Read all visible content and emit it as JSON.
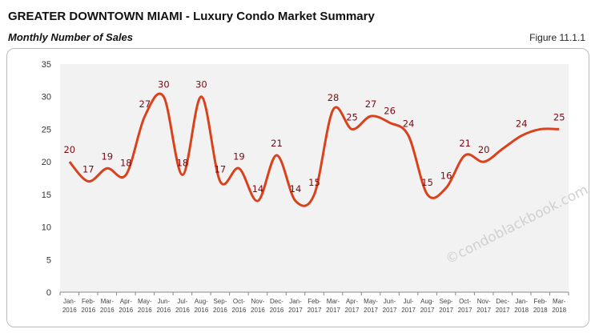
{
  "title": "GREATER DOWNTOWN MIAMI - Luxury Condo Market Summary",
  "subtitle": "Monthly Number of Sales",
  "figure": "Figure 11.1.1",
  "watermark": "©condoblackbook.com",
  "chart_data": {
    "type": "line",
    "categories": [
      "Jan-2016",
      "Feb-2016",
      "Mar-2016",
      "Apr-2016",
      "May-2016",
      "Jun-2016",
      "Jul-2016",
      "Aug-2016",
      "Sep-2016",
      "Oct-2016",
      "Nov-2016",
      "Dec-2016",
      "Jan-2017",
      "Feb-2017",
      "Mar-2017",
      "Apr-2017",
      "May-2017",
      "Jun-2017",
      "Jul-2017",
      "Aug-2017",
      "Sep-2017",
      "Oct-2017",
      "Nov-2017",
      "Dec-2017",
      "Jan-2018",
      "Feb-2018",
      "Mar-2018"
    ],
    "values": [
      20,
      17,
      19,
      18,
      27,
      30,
      18,
      30,
      17,
      19,
      14,
      21,
      14,
      15,
      28,
      25,
      27,
      26,
      24,
      15,
      16,
      21,
      20,
      22,
      24,
      25,
      25
    ],
    "data_labels": [
      "20",
      "17",
      "19",
      "18",
      "27",
      "30",
      "18",
      "30",
      "17",
      "19",
      "14",
      "21",
      "14",
      "15",
      "28",
      "25",
      "27",
      "26",
      "24",
      "15",
      "16",
      "21",
      "20",
      null,
      "24",
      null,
      "25"
    ],
    "ylim": [
      0,
      35
    ],
    "yticks": [
      0,
      5,
      10,
      15,
      20,
      25,
      30,
      35
    ],
    "grid": false,
    "line_color": "#d9421c",
    "label_color": "#7a0a14",
    "plot_bg": "#f2f2f2"
  }
}
